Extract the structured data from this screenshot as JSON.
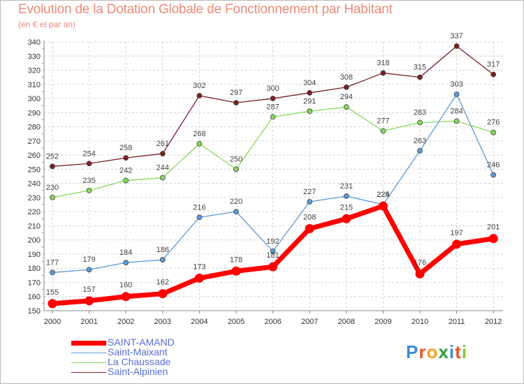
{
  "chart_data": {
    "type": "line",
    "title": "Evolution de la Dotation Globale de Fonctionnement par Habitant",
    "subtitle": "(en € et par an)",
    "x": [
      "2000",
      "2001",
      "2002",
      "2003",
      "2004",
      "2005",
      "2006",
      "2007",
      "2008",
      "2009",
      "2010",
      "2011",
      "2012"
    ],
    "ylim": [
      150,
      340
    ],
    "yticks": [
      150,
      160,
      170,
      180,
      190,
      200,
      210,
      220,
      230,
      240,
      250,
      260,
      270,
      280,
      290,
      300,
      310,
      320,
      330,
      340
    ],
    "grid": true,
    "legend_position": "bottom-left",
    "series": [
      {
        "name": "SAINT-AMAND",
        "color": "#ff0000",
        "values": [
          155,
          157,
          160,
          162,
          173,
          178,
          181,
          208,
          215,
          224,
          176,
          197,
          201
        ]
      },
      {
        "name": "Saint-Maixant",
        "color": "#5a9ad6",
        "values": [
          177,
          179,
          184,
          186,
          216,
          220,
          192,
          227,
          231,
          225,
          263,
          303,
          246
        ]
      },
      {
        "name": "La Chaussade",
        "color": "#86d95a",
        "values": [
          230,
          235,
          242,
          244,
          268,
          250,
          287,
          291,
          294,
          277,
          283,
          284,
          276
        ]
      },
      {
        "name": "Saint-Alpinien",
        "color": "#7a2020",
        "values": [
          252,
          254,
          258,
          261,
          302,
          297,
          300,
          304,
          308,
          318,
          315,
          337,
          317
        ]
      }
    ]
  },
  "logo": {
    "text": "Proxiti",
    "colors": [
      "#3a8fd6",
      "#e8542b",
      "#f4a21c",
      "#2f9e3e",
      "#3a8fd6",
      "#e8542b",
      "#8fc23c"
    ]
  }
}
